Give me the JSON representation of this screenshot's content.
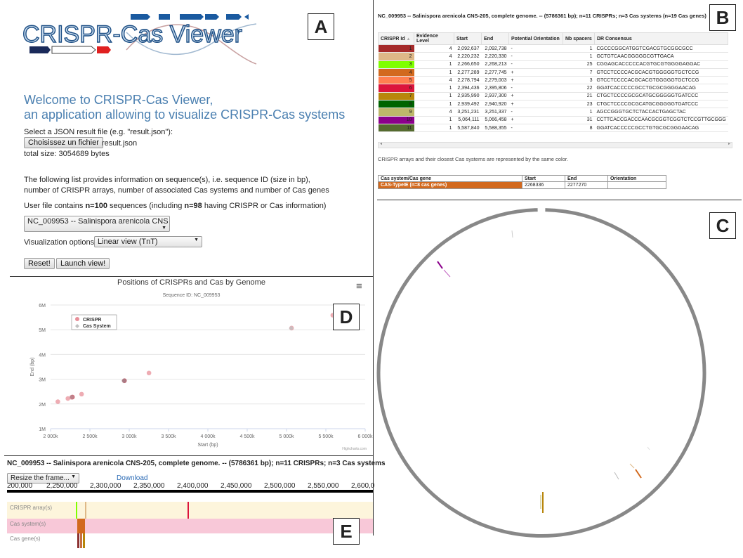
{
  "labels": {
    "a": "A",
    "b": "B",
    "c": "C",
    "d": "D",
    "e": "E"
  },
  "panelA": {
    "logo_text": "CRISPR-Cas Viewer",
    "welcome_line1": "Welcome to CRISPR-Cas Viewer,",
    "welcome_line2": "an application allowing to visualize CRISPR-Cas systems",
    "select_prompt": "Select a JSON result file (e.g. \"result.json\"):",
    "choose_button": "Choisissez un fichier",
    "file_name": "result.json",
    "total_size": "total size: 3054689 bytes",
    "info_line1": "The following list provides information on sequence(s), i.e. sequence ID (size in bp),",
    "info_line2": "number of CRISPR arrays, number of associated Cas systems and number of Cas genes",
    "contains_pre": "User file contains ",
    "contains_n": "n=100",
    "contains_mid": " sequences (including ",
    "contains_n2": "n=98",
    "contains_post": " having CRISPR or Cas information)",
    "sequence_select": "NC_009953 -- Salinispora arenicola CNS",
    "vis_label": "Visualization options:",
    "vis_select": "Linear view (TnT)",
    "reset_button": "Reset!",
    "launch_button": "Launch view!"
  },
  "panelB": {
    "title": "NC_009953 -- Salinispora arenicola CNS-205, complete genome. -- (5786361 bp); n=11 CRISPRs; n=3 Cas systems (n=19 Cas genes)",
    "headers": [
      "CRISPR Id",
      "Evidence Level",
      "Start",
      "End",
      "Potential Orientation",
      "Nb spacers",
      "DR Consensus"
    ],
    "sort_icon": "▲",
    "rows": [
      {
        "id": "1",
        "color": "#a52a2a",
        "ev": "4",
        "start": "2,092,637",
        "end": "2,092,738",
        "orient": "-",
        "sp": "1",
        "dr": "CGCCCGGCATGGTCGACGTGCGGCGCC"
      },
      {
        "id": "2",
        "color": "#deb887",
        "ev": "4",
        "start": "2,220,232",
        "end": "2,220,330",
        "orient": "-",
        "sp": "1",
        "dr": "GCTGTCAACGGGGGCGTTGACA"
      },
      {
        "id": "3",
        "color": "#7fff00",
        "ev": "1",
        "start": "2,266,650",
        "end": "2,268,213",
        "orient": "-",
        "sp": "25",
        "dr": "CGGAGCACCCCCACGTGCGTGGGGAGGAC"
      },
      {
        "id": "4",
        "color": "#d2691e",
        "ev": "1",
        "start": "2,277,289",
        "end": "2,277,745",
        "orient": "+",
        "sp": "7",
        "dr": "GTCCTCCCCACGCACGTGGGGGTGCTCCG"
      },
      {
        "id": "5",
        "color": "#ff7f50",
        "ev": "4",
        "start": "2,278,794",
        "end": "2,279,003",
        "orient": "+",
        "sp": "3",
        "dr": "GTCCTCCCCACGCACGTGGGGGTGCTCCG"
      },
      {
        "id": "6",
        "color": "#dc143c",
        "ev": "1",
        "start": "2,394,436",
        "end": "2,395,806",
        "orient": "-",
        "sp": "22",
        "dr": "GGATCACCCCCGCCTGCGCGGGGAACAG"
      },
      {
        "id": "7",
        "color": "#b8860b",
        "ev": "1",
        "start": "2,935,990",
        "end": "2,937,300",
        "orient": "+",
        "sp": "21",
        "dr": "CTGCTCCCCGCGCATGCGGGGGTGATCCC"
      },
      {
        "id": "8",
        "color": "#006400",
        "ev": "1",
        "start": "2,939,492",
        "end": "2,940,920",
        "orient": "+",
        "sp": "23",
        "dr": "CTGCTCCCCGCGCATGCGGGGGTGATCCC"
      },
      {
        "id": "9",
        "color": "#bdb76b",
        "ev": "4",
        "start": "3,251,231",
        "end": "3,251,337",
        "orient": "-",
        "sp": "1",
        "dr": "AGCCGGGTGCTCTACCACTGAGCTAC"
      },
      {
        "id": "10",
        "color": "#8b008b",
        "ev": "1",
        "start": "5,064,111",
        "end": "5,066,458",
        "orient": "+",
        "sp": "31",
        "dr": "CCTTCACCGACCCAACGCGGTCGGTCTCCGTTGCGGG"
      },
      {
        "id": "11",
        "color": "#556b2f",
        "ev": "1",
        "start": "5,587,840",
        "end": "5,588,355",
        "orient": "-",
        "sp": "8",
        "dr": "GGATCACCCCCGCCTGTGCGCGGGAACAG"
      }
    ],
    "note": "CRISPR arrays and their closest Cas systems are represented by the same color.",
    "cas_headers": [
      "Cas system/Cas gene",
      "Start",
      "End",
      "Orientation"
    ],
    "cas_row": {
      "name": "CAS-TypeIE (n=8 cas genes)",
      "color": "#d2691e",
      "start": "2268336",
      "end": "2277270",
      "orient": ""
    }
  },
  "panelD": {
    "chart_data": {
      "type": "scatter",
      "title": "Positions of CRISPRs and Cas by Genome",
      "subtitle": "Sequence ID: NC_009953",
      "xlabel": "Start (bp)",
      "ylabel": "End (bp)",
      "xlim": [
        2000000,
        6000000
      ],
      "ylim": [
        1000000,
        6000000
      ],
      "x_ticks": [
        "2 000k",
        "2 500k",
        "3 000k",
        "3 500k",
        "4 000k",
        "4 500k",
        "5 000k",
        "5 500k",
        "6 000k"
      ],
      "y_ticks": [
        "1M",
        "2M",
        "3M",
        "4M",
        "5M",
        "6M"
      ],
      "legend_position": "top-left",
      "credit": "Highcharts.com",
      "series": [
        {
          "name": "CRISPR",
          "color": "#e8909a",
          "points": [
            {
              "x": 2092637,
              "y": 2092738
            },
            {
              "x": 2220232,
              "y": 2220330
            },
            {
              "x": 2266650,
              "y": 2268213
            },
            {
              "x": 2277289,
              "y": 2277745
            },
            {
              "x": 2278794,
              "y": 2279003
            },
            {
              "x": 2394436,
              "y": 2395806
            },
            {
              "x": 2935990,
              "y": 2937300
            },
            {
              "x": 2939492,
              "y": 2940920
            },
            {
              "x": 3251231,
              "y": 3251337
            },
            {
              "x": 5064111,
              "y": 5066458
            },
            {
              "x": 5587840,
              "y": 5588355
            }
          ]
        },
        {
          "name": "Cas System",
          "color": "#c0c0c0",
          "points": [
            {
              "x": 2268336,
              "y": 2277270
            },
            {
              "x": 2930000,
              "y": 2935000
            },
            {
              "x": 5060000,
              "y": 5063000
            }
          ]
        }
      ]
    },
    "menu_icon": "≡"
  },
  "panelE": {
    "title": "NC_009953 -- Salinispora arenicola CNS-205, complete genome. -- (5786361 bp); n=11 CRISPRs; n=3 Cas systems",
    "resize_select": "Resize the frame...",
    "download": "Download",
    "axis_ticks": [
      "200,000",
      "2,250,000",
      "2,300,000",
      "2,350,000",
      "2,400,000",
      "2,450,000",
      "2,500,000",
      "2,550,000",
      "2,600,0"
    ],
    "tracks": [
      "CRISPR array(s)",
      "Cas system(s)",
      "Cas gene(s)"
    ]
  }
}
